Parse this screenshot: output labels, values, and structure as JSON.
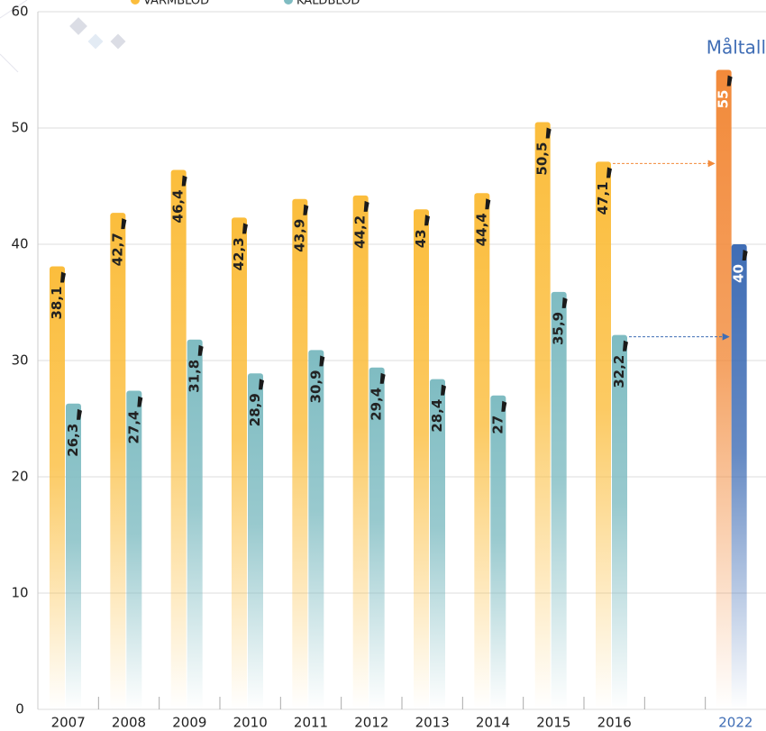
{
  "chart_data": {
    "type": "bar",
    "categories": [
      "2007",
      "2008",
      "2009",
      "2010",
      "2011",
      "2012",
      "2013",
      "2014",
      "2015",
      "2016",
      null,
      "2022"
    ],
    "series": [
      {
        "name": "VARMBLOD",
        "color": "#fbbd3c",
        "target_color": "#f28a3a",
        "values": [
          38.1,
          42.7,
          46.4,
          42.3,
          43.9,
          44.2,
          43,
          44.4,
          50.5,
          47.1,
          null,
          55
        ],
        "value_labels": [
          "38,1",
          "42,7",
          "46,4",
          "42,3",
          "43,9",
          "44,2",
          "43",
          "44,4",
          "50,5",
          "47,1",
          null,
          "55"
        ]
      },
      {
        "name": "KALDBLOD",
        "color": "#7fbcc2",
        "target_color": "#3f6db5",
        "values": [
          26.3,
          27.4,
          31.8,
          28.9,
          30.9,
          29.4,
          28.4,
          27,
          35.9,
          32.2,
          null,
          40
        ],
        "value_labels": [
          "26,3",
          "27,4",
          "31,8",
          "28,9",
          "30,9",
          "29,4",
          "28,4",
          "27",
          "35,9",
          "32,2",
          null,
          "40"
        ]
      }
    ],
    "annotation": "Måltall",
    "ylim": [
      0,
      60
    ],
    "yticks": [
      0,
      10,
      20,
      30,
      40,
      50,
      60
    ],
    "grid": true
  }
}
